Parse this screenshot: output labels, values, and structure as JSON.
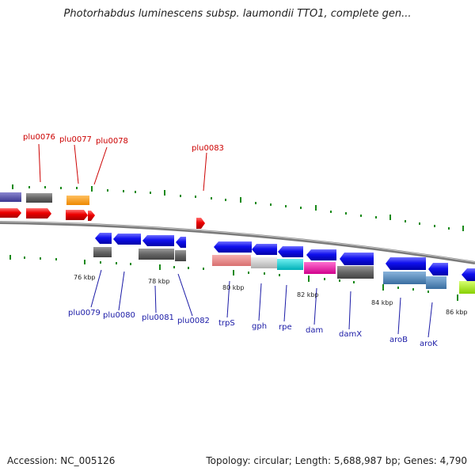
{
  "title": "Photorhabdus luminescens subsp. laumondii TTO1, complete gen...",
  "footer": {
    "accession": "Accession: NC_005126",
    "topology": "Topology: circular; Length: 5,688,987 bp; Genes: 4,790"
  },
  "scale_labels": [
    "76 kbp",
    "78 kbp",
    "80 kbp",
    "82 kbp",
    "84 kbp",
    "86 kbp"
  ],
  "gene_labels_top": [
    "plu0076",
    "plu0077",
    "plu0078",
    "plu0083"
  ],
  "gene_labels_bottom": [
    "plu0079",
    "plu0080",
    "plu0081",
    "plu0082",
    "trpS",
    "gph",
    "rpe",
    "dam",
    "damX",
    "aroB",
    "aroK"
  ],
  "colors": {
    "forward_gene": "#ee0000",
    "reverse_gene": "#0000ee",
    "backbone": "#888888",
    "tick": "#1a8a1a",
    "label_top": "#cc0000",
    "label_bottom": "#1a1aa6"
  }
}
